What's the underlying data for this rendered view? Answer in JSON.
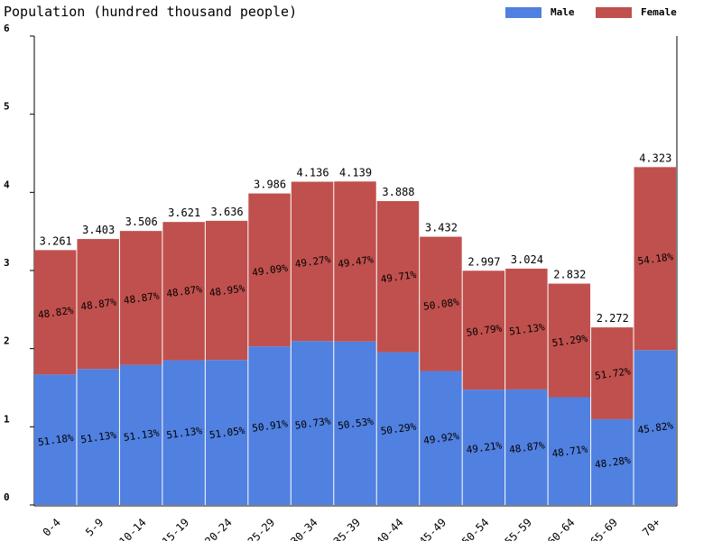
{
  "chart_data": {
    "type": "stacked-bar",
    "title": "Population (hundred thousand people)",
    "categories": [
      "0-4",
      "5-9",
      "10-14",
      "15-19",
      "20-24",
      "25-29",
      "30-34",
      "35-39",
      "40-44",
      "45-49",
      "50-54",
      "55-59",
      "60-64",
      "65-69",
      "70+"
    ],
    "series": [
      {
        "name": "Male",
        "color": "#5080e0",
        "values": [
          1.669,
          1.74,
          1.793,
          1.851,
          1.856,
          2.029,
          2.098,
          2.091,
          1.955,
          1.713,
          1.475,
          1.478,
          1.379,
          1.097,
          1.981
        ],
        "value_labels": [
          "51.18%",
          "51.13%",
          "51.13%",
          "51.13%",
          "51.05%",
          "50.91%",
          "50.73%",
          "50.53%",
          "50.29%",
          "49.92%",
          "49.21%",
          "48.87%",
          "48.71%",
          "48.28%",
          "45.82%"
        ]
      },
      {
        "name": "Female",
        "color": "#c0504d",
        "values": [
          1.592,
          1.663,
          1.713,
          1.77,
          1.78,
          1.957,
          2.038,
          2.048,
          1.933,
          1.719,
          1.522,
          1.546,
          1.453,
          1.175,
          2.342
        ],
        "value_labels": [
          "48.82%",
          "48.87%",
          "48.87%",
          "48.87%",
          "48.95%",
          "49.09%",
          "49.27%",
          "49.47%",
          "49.71%",
          "50.08%",
          "50.79%",
          "51.13%",
          "51.29%",
          "51.72%",
          "54.18%"
        ]
      }
    ],
    "totals": [
      3.261,
      3.403,
      3.506,
      3.621,
      3.636,
      3.986,
      4.136,
      4.139,
      3.888,
      3.432,
      2.997,
      3.024,
      2.832,
      2.272,
      4.323
    ],
    "ylim": [
      0,
      6
    ],
    "yticks": [
      0,
      1,
      2,
      3,
      4,
      5,
      6
    ]
  }
}
